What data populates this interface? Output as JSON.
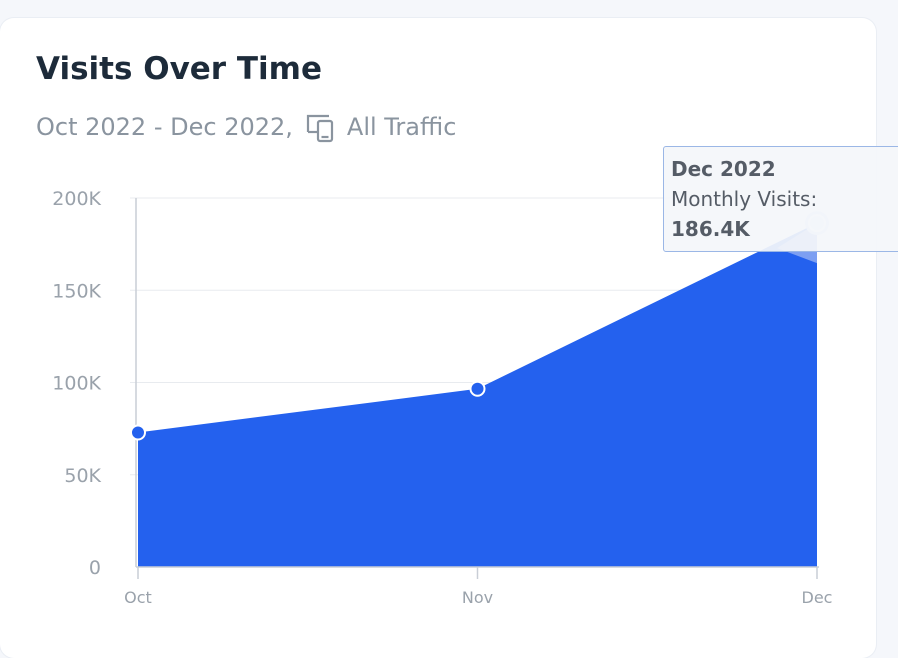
{
  "card": {
    "title": "Visits Over Time",
    "date_range": "Oct 2022 - Dec 2022,",
    "traffic_filter": "All Traffic",
    "traffic_icon": "devices-icon"
  },
  "colors": {
    "area_fill": "#2461ee",
    "text_dark": "#1d2b3a",
    "text_muted": "#8a949f",
    "grid": "#e8ebef",
    "tooltip_border": "#9bb7e6"
  },
  "chart_data": {
    "type": "area",
    "title": "Visits Over Time",
    "categories": [
      "Oct",
      "Nov",
      "Dec"
    ],
    "series": [
      {
        "name": "Monthly Visits",
        "values": [
          72900,
          96600,
          186400
        ]
      }
    ],
    "ylim": [
      0,
      200000
    ],
    "yticks": [
      {
        "value": 0,
        "label": "0"
      },
      {
        "value": 50000,
        "label": "50K"
      },
      {
        "value": 100000,
        "label": "100K"
      },
      {
        "value": 150000,
        "label": "150K"
      },
      {
        "value": 200000,
        "label": "200K"
      }
    ],
    "grid": true,
    "legend": "none",
    "tooltip": {
      "title": "Dec 2022",
      "label": "Monthly Visits:",
      "value": "186.4K",
      "category": "Dec"
    }
  }
}
